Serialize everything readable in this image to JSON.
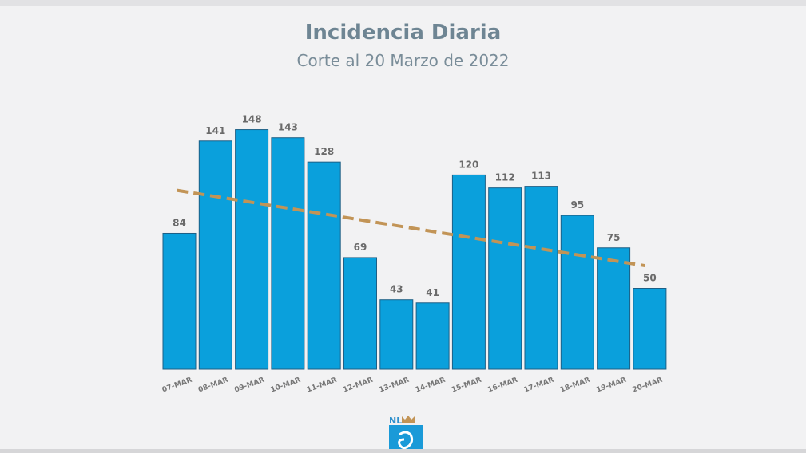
{
  "chart_data": {
    "type": "bar",
    "title": "Incidencia Diaria",
    "subtitle": "Corte al 20 Marzo de 2022",
    "categories": [
      "07-MAR",
      "08-MAR",
      "09-MAR",
      "10-MAR",
      "11-MAR",
      "12-MAR",
      "13-MAR",
      "14-MAR",
      "15-MAR",
      "16-MAR",
      "17-MAR",
      "18-MAR",
      "19-MAR",
      "20-MAR"
    ],
    "values": [
      84,
      141,
      148,
      143,
      128,
      69,
      43,
      41,
      120,
      112,
      113,
      95,
      75,
      50
    ],
    "trendline": {
      "type": "linear",
      "style": "dashed",
      "start": 113,
      "end": 64
    },
    "xlabel": "",
    "ylabel": "",
    "grid": false,
    "legend": "none",
    "colors": {
      "bar": "#0aa0dc",
      "trend": "#c29456",
      "label": "#6a6a6a"
    }
  },
  "logo": {
    "text": "NL"
  }
}
